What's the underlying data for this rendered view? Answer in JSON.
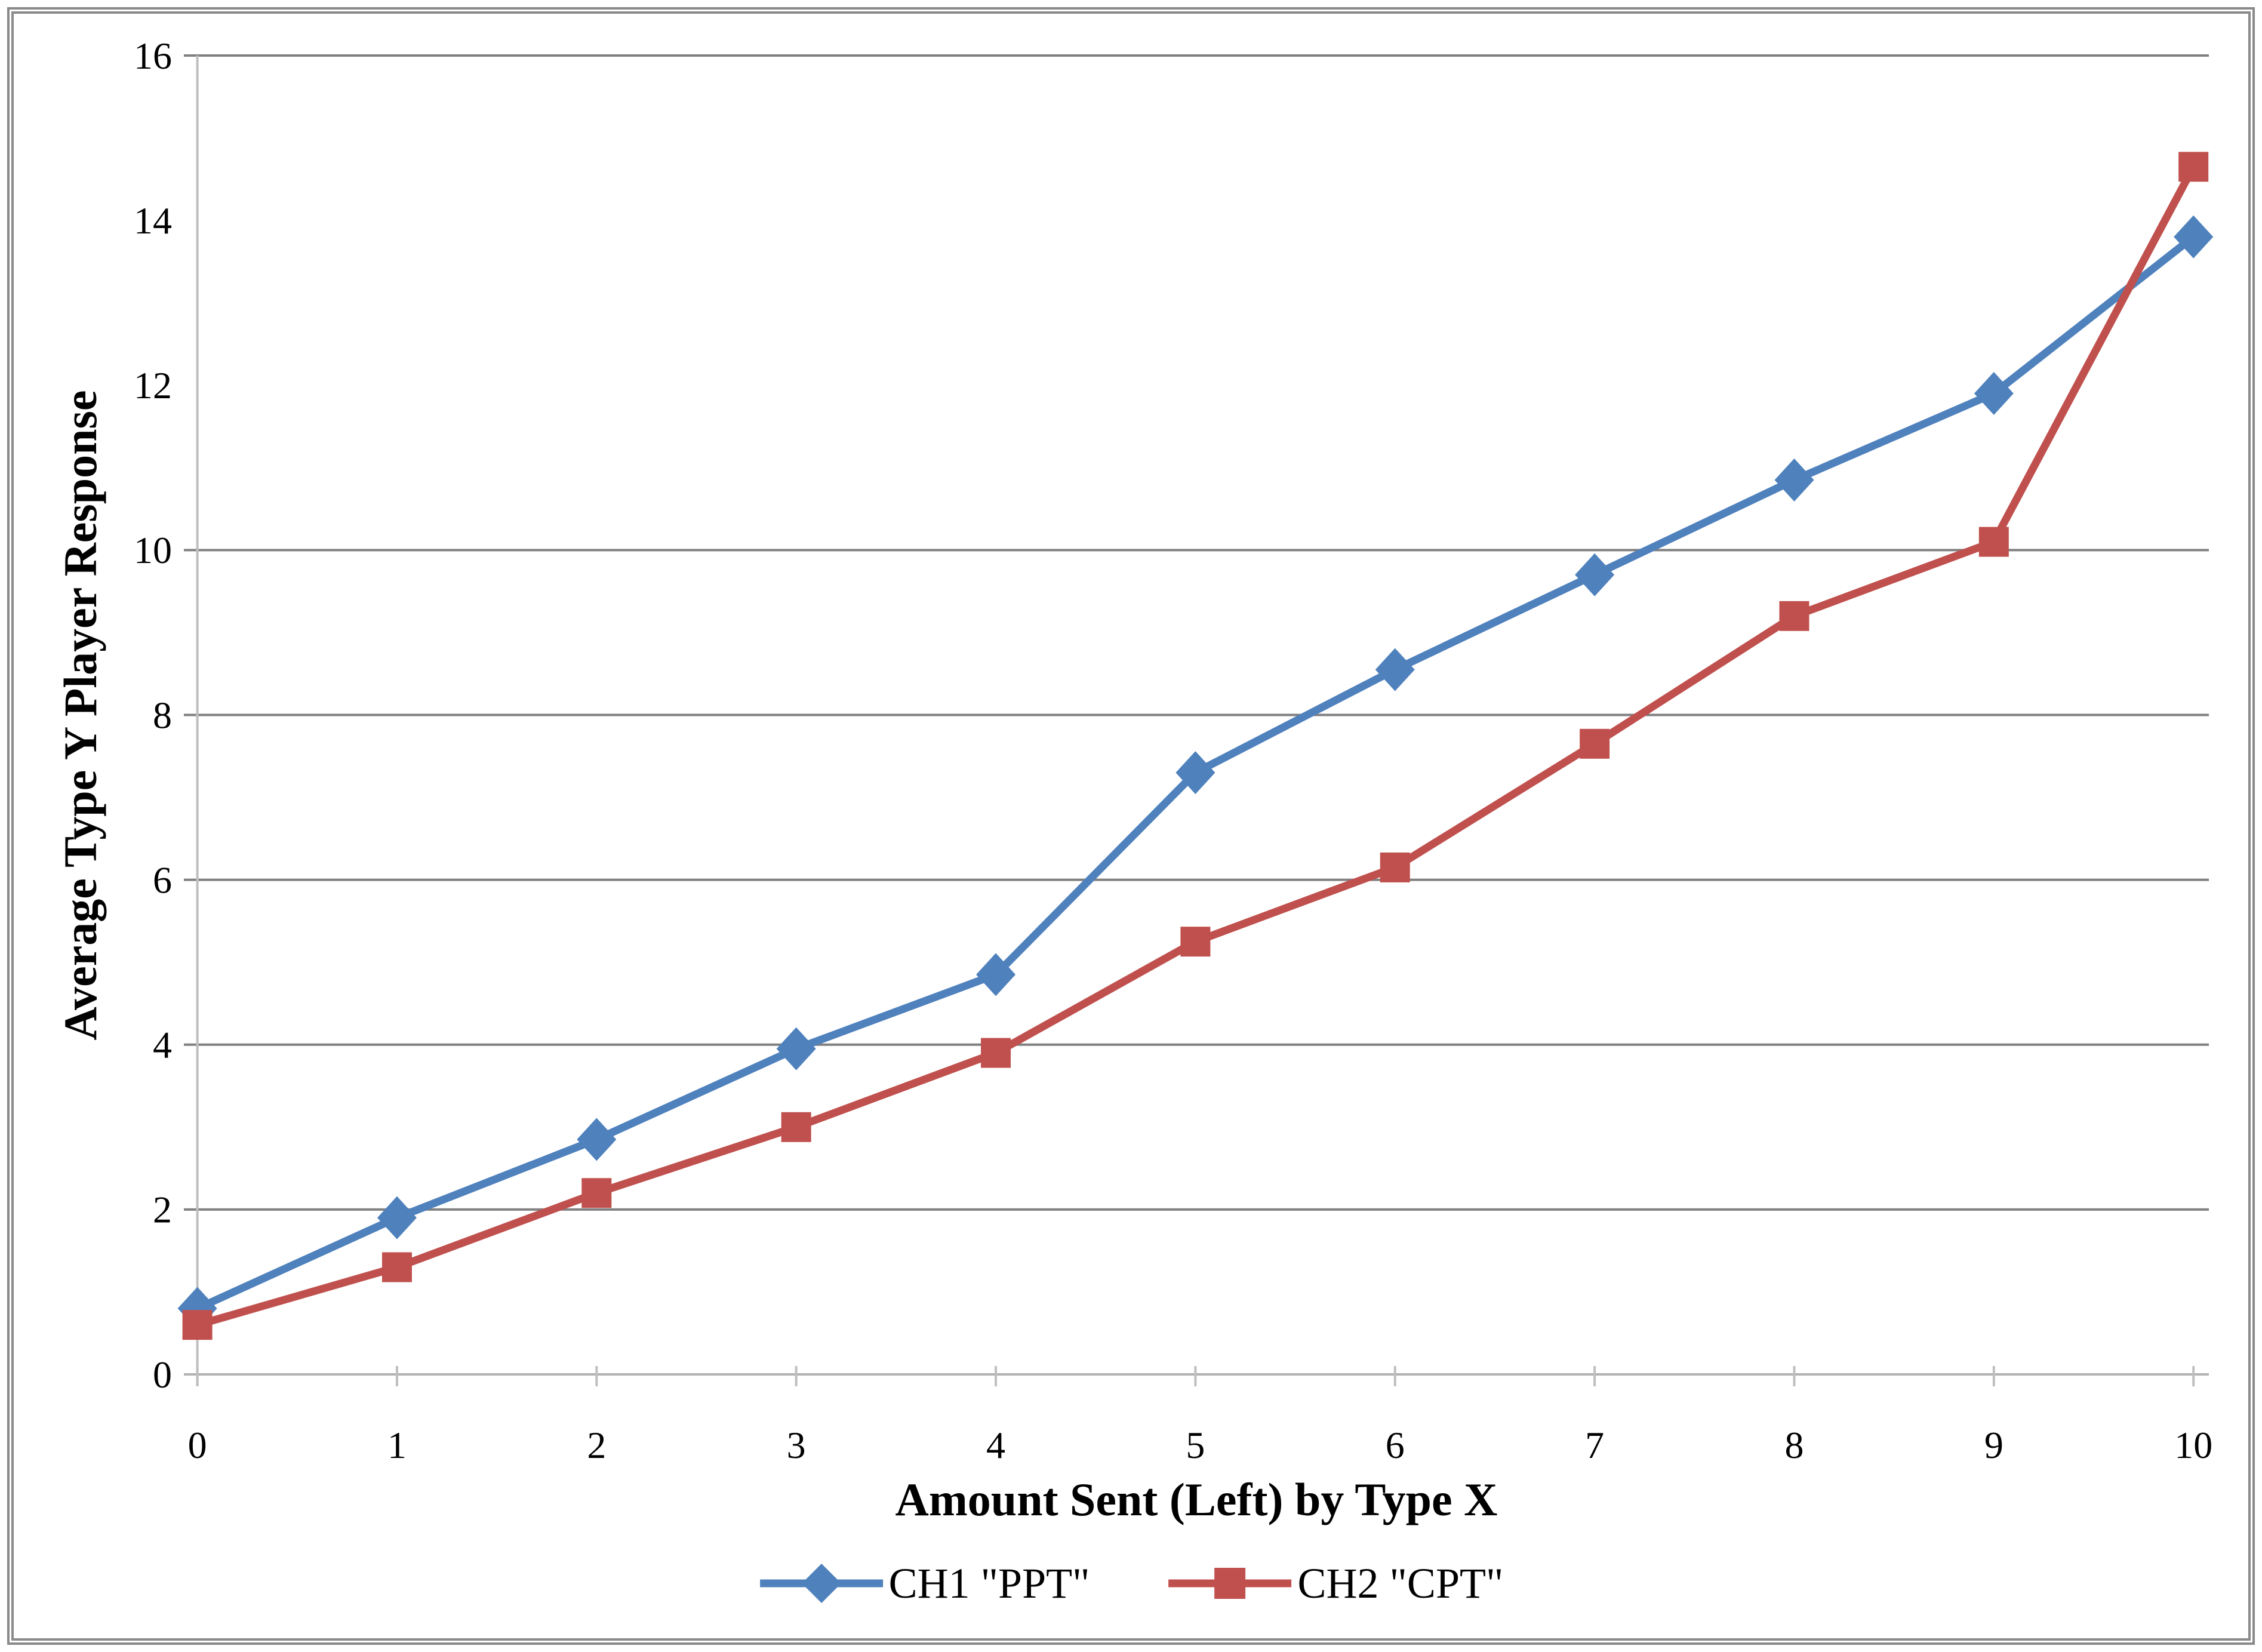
{
  "chart_data": {
    "type": "line",
    "x": [
      0,
      1,
      2,
      3,
      4,
      5,
      6,
      7,
      8,
      9,
      10
    ],
    "xticks": [
      "0",
      "1",
      "2",
      "3",
      "4",
      "5",
      "6",
      "7",
      "8",
      "9",
      "10"
    ],
    "yticks": [
      "0",
      "2",
      "4",
      "6",
      "8",
      "10",
      "12",
      "14",
      "16"
    ],
    "ytick_values": [
      0,
      2,
      4,
      6,
      8,
      10,
      12,
      14,
      16
    ],
    "gridlines_at": [
      2,
      4,
      6,
      8,
      10,
      16
    ],
    "xlim": [
      0,
      10
    ],
    "ylim": [
      0,
      16
    ],
    "grid": "horizontal",
    "legend_position": "bottom-center",
    "title": "",
    "xlabel": "Amount Sent (Left) by Type X",
    "ylabel": "Average Type Y Player Response",
    "series": [
      {
        "name": "CH1 \"PPT\"",
        "marker": "diamond",
        "color": "#4F81BD",
        "values": [
          0.8,
          1.9,
          2.85,
          3.95,
          4.85,
          7.3,
          8.55,
          9.7,
          10.85,
          11.9,
          13.8
        ]
      },
      {
        "name": "CH2 \"CPT\"",
        "marker": "square",
        "color": "#C0504D",
        "values": [
          0.6,
          1.3,
          2.2,
          3.0,
          3.9,
          5.25,
          6.15,
          7.65,
          9.2,
          10.1,
          14.65
        ]
      }
    ],
    "colors": {
      "gridline": "#808080",
      "zero_axis_line": "#B3B3B3",
      "axis_line": "#BFBFBF",
      "text": "#000000",
      "frame": "#8A8A8A",
      "background": "#FFFFFF"
    }
  }
}
